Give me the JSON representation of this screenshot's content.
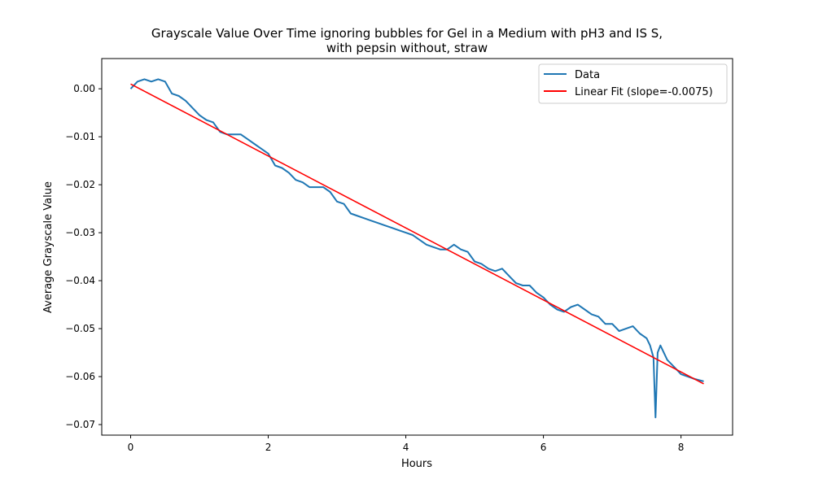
{
  "chart_data": {
    "type": "line",
    "title": "Grayscale Value Over Time ignoring bubbles for Gel in a Medium with pH3 and IS S,",
    "subtitle": "with pepsin without, straw",
    "xlabel": "Hours",
    "ylabel": "Average Grayscale Value",
    "xlim": [
      -0.42,
      8.75
    ],
    "ylim": [
      -0.0722,
      0.0063
    ],
    "x_ticks": [
      0,
      2,
      4,
      6,
      8
    ],
    "x_tick_labels": [
      "0",
      "2",
      "4",
      "6",
      "8"
    ],
    "y_ticks": [
      0.0,
      -0.01,
      -0.02,
      -0.03,
      -0.04,
      -0.05,
      -0.06,
      -0.07
    ],
    "y_tick_labels": [
      "0.00",
      "−0.01",
      "−0.02",
      "−0.03",
      "−0.04",
      "−0.05",
      "−0.06",
      "−0.07"
    ],
    "grid": false,
    "legend_position": "upper right",
    "series": [
      {
        "name": "Data",
        "color": "#1f77b4",
        "x": [
          0,
          0.1,
          0.2,
          0.3,
          0.4,
          0.5,
          0.6,
          0.7,
          0.8,
          0.9,
          1.0,
          1.1,
          1.2,
          1.3,
          1.4,
          1.5,
          1.6,
          1.7,
          1.8,
          1.9,
          2.0,
          2.1,
          2.2,
          2.3,
          2.4,
          2.5,
          2.6,
          2.7,
          2.8,
          2.9,
          3.0,
          3.1,
          3.2,
          3.3,
          3.4,
          3.5,
          3.6,
          3.7,
          3.8,
          3.9,
          4.0,
          4.1,
          4.2,
          4.3,
          4.4,
          4.5,
          4.6,
          4.7,
          4.8,
          4.9,
          5.0,
          5.1,
          5.2,
          5.3,
          5.4,
          5.5,
          5.6,
          5.7,
          5.8,
          5.9,
          6.0,
          6.1,
          6.2,
          6.3,
          6.4,
          6.5,
          6.6,
          6.7,
          6.8,
          6.9,
          7.0,
          7.1,
          7.2,
          7.3,
          7.4,
          7.5,
          7.55,
          7.6,
          7.63,
          7.66,
          7.7,
          7.75,
          7.8,
          7.9,
          8.0,
          8.1,
          8.2,
          8.33
        ],
        "y": [
          0.0,
          0.0015,
          0.002,
          0.0015,
          0.002,
          0.0015,
          -0.001,
          -0.0015,
          -0.0025,
          -0.004,
          -0.0055,
          -0.0065,
          -0.007,
          -0.009,
          -0.0095,
          -0.0095,
          -0.0095,
          -0.0105,
          -0.0115,
          -0.0125,
          -0.0135,
          -0.016,
          -0.0165,
          -0.0175,
          -0.019,
          -0.0195,
          -0.0205,
          -0.0205,
          -0.0205,
          -0.0215,
          -0.0235,
          -0.024,
          -0.026,
          -0.0265,
          -0.027,
          -0.0275,
          -0.028,
          -0.0285,
          -0.029,
          -0.0295,
          -0.03,
          -0.0305,
          -0.0315,
          -0.0325,
          -0.033,
          -0.0335,
          -0.0335,
          -0.0325,
          -0.0335,
          -0.034,
          -0.036,
          -0.0365,
          -0.0375,
          -0.038,
          -0.0375,
          -0.039,
          -0.0405,
          -0.041,
          -0.041,
          -0.0425,
          -0.0435,
          -0.045,
          -0.046,
          -0.0465,
          -0.0455,
          -0.045,
          -0.046,
          -0.047,
          -0.0475,
          -0.049,
          -0.049,
          -0.0505,
          -0.05,
          -0.0495,
          -0.051,
          -0.052,
          -0.0535,
          -0.056,
          -0.0685,
          -0.055,
          -0.0535,
          -0.055,
          -0.0565,
          -0.058,
          -0.0595,
          -0.06,
          -0.0605,
          -0.061
        ]
      },
      {
        "name": "Linear Fit (slope=-0.0075)",
        "color": "#ff0000",
        "x": [
          0,
          8.33
        ],
        "y": [
          0.001,
          -0.0615
        ]
      }
    ]
  }
}
